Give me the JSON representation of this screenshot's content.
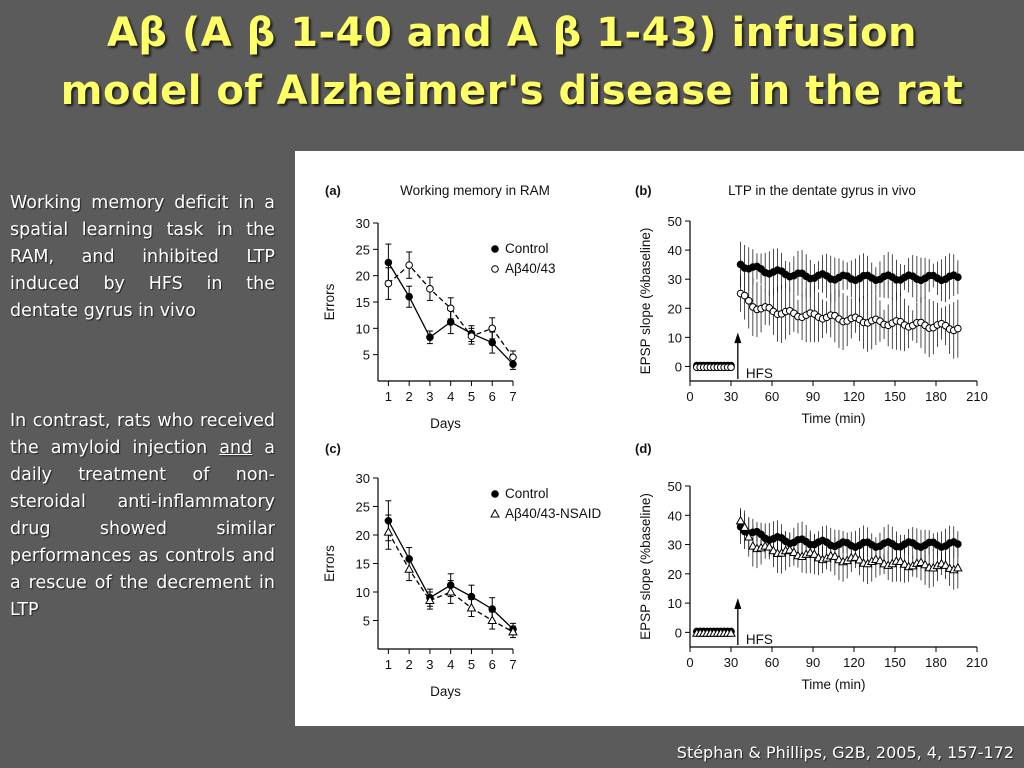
{
  "slide": {
    "title_line1": "Aβ (A β 1-40 and A β 1-43) infusion",
    "title_line2": "model of Alzheimer's disease in the rat",
    "para1": "Working memory deficit in a spatial learning task in the RAM, and inhibited LTP induced by HFS in the dentate gyrus in vivo",
    "para2_before": "In contrast, rats who received the amyloid injection ",
    "para2_emph": "and",
    "para2_after": " a daily treatment of non-steroidal anti-inflammatory drug showed similar performances as controls and a rescue of the decrement in LTP",
    "citation": "Stéphan & Phillips, G2B, 2005, 4, 157-172",
    "colors": {
      "background": "#5b5b5b",
      "title": "#ffff66",
      "text": "#ffffff",
      "figure_bg": "#ffffff"
    }
  },
  "chart_data": [
    {
      "panel": "(a)",
      "type": "line",
      "title": "Working memory in RAM",
      "xlabel": "Days",
      "ylabel": "Errors",
      "x": [
        1,
        2,
        3,
        4,
        5,
        6,
        7
      ],
      "xlim": [
        0.5,
        7
      ],
      "ylim": [
        0,
        30
      ],
      "yticks": [
        5,
        10,
        15,
        20,
        25,
        30
      ],
      "legend_position": "top-right",
      "series": [
        {
          "name": "Control",
          "marker": "filled-circle",
          "line": "solid",
          "values": [
            22.5,
            16,
            8.3,
            11.2,
            9,
            7.3,
            3.2
          ],
          "err": [
            3.5,
            2,
            1.2,
            2.2,
            1.5,
            2,
            1
          ]
        },
        {
          "name": "Aβ40/43",
          "marker": "open-circle",
          "line": "dashed",
          "values": [
            18.5,
            22,
            17.5,
            13.8,
            8.5,
            10,
            4.5
          ],
          "err": [
            3,
            2.5,
            2.2,
            2,
            1.5,
            2,
            1.2
          ]
        }
      ]
    },
    {
      "panel": "(b)",
      "type": "scatter",
      "title": "LTP in the dentate gyrus in vivo",
      "xlabel": "Time (min)",
      "ylabel": "EPSP slope (%baseline)",
      "xticks": [
        0,
        30,
        60,
        90,
        120,
        150,
        180,
        210
      ],
      "yticks": [
        0,
        10,
        20,
        30,
        40,
        50
      ],
      "xlim": [
        0,
        210
      ],
      "ylim": [
        -5,
        50
      ],
      "annotation": "HFS",
      "hfs_time": 35,
      "series": [
        {
          "name": "Control",
          "marker": "filled-circle",
          "baseline": 0,
          "values": [
            35,
            34,
            33,
            32.5,
            32,
            31.5,
            31,
            31,
            30.8,
            30.5,
            30.5,
            30.5,
            30.5,
            30.5,
            30.5,
            30.5,
            30.5,
            30.5,
            30.5,
            30.5,
            30.5
          ],
          "err": 8
        },
        {
          "name": "Aβ40/43",
          "marker": "open-circle",
          "baseline": 0,
          "values": [
            25,
            21,
            20,
            19,
            18.5,
            18,
            17.5,
            17.5,
            17,
            16.5,
            16,
            16,
            15.5,
            15,
            15,
            14.5,
            14.5,
            14,
            14,
            13.5,
            13
          ],
          "err": 10
        }
      ]
    },
    {
      "panel": "(c)",
      "type": "line",
      "xlabel": "Days",
      "ylabel": "Errors",
      "x": [
        1,
        2,
        3,
        4,
        5,
        6,
        7
      ],
      "xlim": [
        0.5,
        7
      ],
      "ylim": [
        0,
        30
      ],
      "yticks": [
        5,
        10,
        15,
        20,
        25,
        30
      ],
      "legend_position": "top-right",
      "series": [
        {
          "name": "Control",
          "marker": "filled-circle",
          "line": "solid",
          "values": [
            22.5,
            15.8,
            9,
            11.2,
            9.2,
            7,
            3.5
          ],
          "err": [
            3.5,
            2,
            1.5,
            2,
            2,
            2,
            1
          ]
        },
        {
          "name": "Aβ40/43-NSAID",
          "marker": "open-triangle",
          "line": "dashed",
          "values": [
            20.5,
            14,
            8.5,
            10,
            7.2,
            5,
            3
          ],
          "err": [
            3,
            2,
            1.5,
            2,
            1.5,
            1.5,
            1
          ]
        }
      ]
    },
    {
      "panel": "(d)",
      "type": "scatter",
      "xlabel": "Time (min)",
      "ylabel": "EPSP slope (%baseline)",
      "xticks": [
        0,
        30,
        60,
        90,
        120,
        150,
        180,
        210
      ],
      "yticks": [
        0,
        10,
        20,
        30,
        40,
        50
      ],
      "xlim": [
        0,
        210
      ],
      "ylim": [
        -5,
        50
      ],
      "annotation": "HFS",
      "hfs_time": 35,
      "series": [
        {
          "name": "Control",
          "marker": "filled-circle",
          "baseline": 0,
          "values": [
            36,
            34,
            33,
            32,
            31.5,
            31,
            31,
            30.5,
            30.5,
            30,
            30,
            30,
            30,
            30,
            30,
            30,
            30,
            30,
            30,
            30,
            30
          ],
          "err": 6
        },
        {
          "name": "Aβ40/43-NSAID",
          "marker": "open-triangle",
          "baseline": 0,
          "values": [
            38,
            30,
            29,
            28,
            27.5,
            27,
            26.5,
            26,
            25.5,
            25,
            25,
            24.5,
            24,
            24,
            23.5,
            23.5,
            23,
            23,
            22.5,
            22.5,
            22
          ],
          "err": 7
        }
      ]
    }
  ]
}
